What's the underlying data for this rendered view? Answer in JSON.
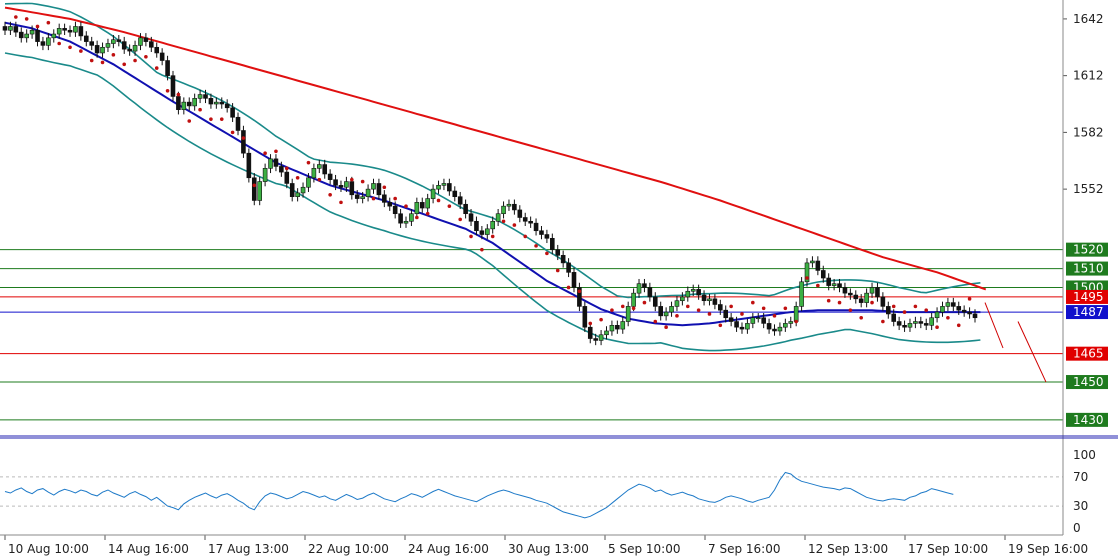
{
  "chart_data": [
    {
      "type": "candlestick",
      "price_axis": {
        "range": [
          1422,
          1652
        ],
        "ticks": [
          1642,
          1612,
          1582,
          1552
        ]
      },
      "time_labels": [
        "10 Aug 10:00",
        "14 Aug 16:00",
        "17 Aug 13:00",
        "22 Aug 10:00",
        "24 Aug 16:00",
        "30 Aug 13:00",
        "5 Sep 10:00",
        "7 Sep 16:00",
        "12 Sep 13:00",
        "17 Sep 10:00",
        "19 Sep 16:00"
      ],
      "levels": [
        {
          "value": 1520,
          "label": "1520",
          "color": "#1e7b1e"
        },
        {
          "value": 1510,
          "label": "1510",
          "color": "#1e7b1e"
        },
        {
          "value": 1500,
          "label": "1500",
          "color": "#1e7b1e"
        },
        {
          "value": 1495,
          "label": "1495",
          "color": "#e00000"
        },
        {
          "value": 1487,
          "label": "1487",
          "color": "#1010cc"
        },
        {
          "value": 1465,
          "label": "1465",
          "color": "#e00000"
        },
        {
          "value": 1450,
          "label": "1450",
          "color": "#1e7b1e"
        },
        {
          "value": 1430,
          "label": "1430",
          "color": "#1e7b1e"
        }
      ],
      "close": [
        1636,
        1638,
        1635,
        1632,
        1634,
        1636,
        1630,
        1628,
        1632,
        1634,
        1637,
        1636,
        1635,
        1638,
        1633,
        1630,
        1628,
        1624,
        1627,
        1629,
        1631,
        1630,
        1626,
        1625,
        1628,
        1632,
        1630,
        1627,
        1624,
        1620,
        1612,
        1601,
        1594,
        1598,
        1596,
        1600,
        1602,
        1600,
        1597,
        1598,
        1597,
        1595,
        1590,
        1583,
        1571,
        1558,
        1546,
        1556,
        1563,
        1568,
        1564,
        1561,
        1555,
        1548,
        1550,
        1553,
        1558,
        1563,
        1565,
        1560,
        1557,
        1554,
        1553,
        1556,
        1549,
        1547,
        1548,
        1552,
        1555,
        1549,
        1545,
        1543,
        1539,
        1534,
        1535,
        1539,
        1545,
        1542,
        1547,
        1552,
        1554,
        1555,
        1551,
        1548,
        1544,
        1539,
        1535,
        1530,
        1528,
        1531,
        1535,
        1539,
        1543,
        1544,
        1541,
        1537,
        1535,
        1534,
        1530,
        1528,
        1526,
        1520,
        1517,
        1513,
        1508,
        1500,
        1490,
        1479,
        1473,
        1472,
        1475,
        1477,
        1480,
        1478,
        1482,
        1490,
        1497,
        1502,
        1500,
        1495,
        1490,
        1485,
        1487,
        1490,
        1493,
        1495,
        1498,
        1499,
        1496,
        1493,
        1494,
        1491,
        1488,
        1484,
        1482,
        1479,
        1478,
        1481,
        1484,
        1484,
        1481,
        1478,
        1477,
        1479,
        1481,
        1482,
        1490,
        1503,
        1513,
        1514,
        1509,
        1505,
        1501,
        1502,
        1500,
        1497,
        1496,
        1494,
        1492,
        1497,
        1500,
        1495,
        1490,
        1486,
        1482,
        1480,
        1479,
        1481,
        1482,
        1481,
        1480,
        1484,
        1487,
        1490,
        1492,
        1490,
        1488,
        1487,
        1486,
        1484
      ],
      "ma_blue": [
        1640,
        1639.4,
        1638.8,
        1638.2,
        1637.6,
        1637,
        1636,
        1635,
        1634,
        1633,
        1632,
        1631,
        1630,
        1628.5,
        1627,
        1625.5,
        1624,
        1622.5,
        1621,
        1619.5,
        1618,
        1616.2,
        1614.4,
        1612.6,
        1610.8,
        1609,
        1607.2,
        1605.4,
        1603.6,
        1601.8,
        1600,
        1598.3,
        1596.6,
        1594.9,
        1593.2,
        1591.5,
        1589.8,
        1588.1,
        1586.4,
        1584.7,
        1583,
        1581.3,
        1579.6,
        1577.9,
        1576.2,
        1574.5,
        1572.8,
        1571.1,
        1569.4,
        1567.7,
        1566,
        1564.8,
        1563.6,
        1562.4,
        1561.2,
        1560,
        1558.8,
        1557.6,
        1556.4,
        1555.2,
        1554,
        1553.2,
        1552.4,
        1551.6,
        1550.8,
        1550,
        1549.2,
        1548.4,
        1547.6,
        1546.8,
        1546,
        1545,
        1544,
        1543,
        1542,
        1541,
        1540,
        1539,
        1538,
        1537,
        1536,
        1535,
        1534,
        1533,
        1532,
        1531,
        1529.5,
        1528,
        1526.5,
        1525,
        1523.5,
        1521.5,
        1519.5,
        1517.5,
        1515.5,
        1513.5,
        1511.5,
        1509.5,
        1507.5,
        1505.5,
        1503.5,
        1502,
        1500.5,
        1499,
        1497.5,
        1496,
        1494.5,
        1493,
        1491.5,
        1490,
        1488.5,
        1487.5,
        1486.5,
        1485.5,
        1484.5,
        1483.5,
        1483,
        1482.5,
        1482,
        1481.5,
        1481,
        1480.8,
        1480.6,
        1480.4,
        1480.2,
        1480,
        1480.2,
        1480.4,
        1480.6,
        1480.8,
        1481,
        1481.4,
        1481.8,
        1482.2,
        1482.6,
        1483,
        1483.4,
        1483.8,
        1484.2,
        1484.6,
        1485,
        1485.4,
        1485.8,
        1486.2,
        1486.6,
        1487,
        1487.2,
        1487.4,
        1487.6,
        1487.8,
        1488,
        1488,
        1488,
        1488,
        1488,
        1488,
        1488,
        1488,
        1488,
        1488,
        1488,
        1487.8,
        1487.6,
        1487.4,
        1487.2,
        1487,
        1487,
        1487,
        1487,
        1487,
        1487,
        1487,
        1487,
        1487,
        1487,
        1487,
        1487,
        1487,
        1487,
        1487,
        1487
      ],
      "ma_red": [
        1648,
        1647.5,
        1647,
        1646.5,
        1646,
        1645.5,
        1645,
        1644.5,
        1644,
        1643.5,
        1643,
        1642.5,
        1642,
        1641.3,
        1640.6,
        1639.9,
        1639.2,
        1638.5,
        1637.8,
        1637.1,
        1636.4,
        1635.7,
        1635,
        1634.2,
        1633.4,
        1632.6,
        1631.8,
        1631,
        1630.2,
        1629.4,
        1628.6,
        1627.8,
        1627,
        1626.2,
        1625.4,
        1624.6,
        1623.8,
        1623,
        1622.2,
        1621.4,
        1620.6,
        1619.8,
        1619,
        1618.2,
        1617.4,
        1616.6,
        1615.8,
        1615,
        1614.2,
        1613.4,
        1612.6,
        1611.8,
        1611,
        1610.2,
        1609.4,
        1608.6,
        1607.8,
        1607,
        1606.2,
        1605.4,
        1604.6,
        1603.8,
        1603,
        1602.2,
        1601.4,
        1600.6,
        1599.8,
        1599,
        1598.2,
        1597.4,
        1596.6,
        1595.8,
        1595,
        1594.2,
        1593.4,
        1592.6,
        1591.8,
        1591,
        1590.2,
        1589.4,
        1588.6,
        1587.8,
        1587,
        1586.2,
        1585.4,
        1584.6,
        1583.8,
        1583,
        1582.2,
        1581.4,
        1580.6,
        1579.8,
        1579,
        1578.2,
        1577.4,
        1576.6,
        1575.8,
        1575,
        1574.2,
        1573.4,
        1572.6,
        1571.8,
        1571,
        1570.2,
        1569.4,
        1568.6,
        1567.8,
        1567,
        1566.2,
        1565.4,
        1564.6,
        1563.8,
        1563,
        1562.2,
        1561.4,
        1560.6,
        1559.8,
        1559,
        1558.2,
        1557.4,
        1556.6,
        1555.8,
        1555,
        1554.1,
        1553.2,
        1552.3,
        1551.4,
        1550.5,
        1549.6,
        1548.7,
        1547.8,
        1546.9,
        1546,
        1545,
        1544,
        1543,
        1542,
        1541,
        1540,
        1539,
        1538,
        1537,
        1536,
        1535,
        1534,
        1533,
        1532,
        1531,
        1530,
        1529,
        1528,
        1527,
        1526,
        1525,
        1524,
        1523,
        1522,
        1521,
        1520,
        1519,
        1518,
        1517,
        1516,
        1515.2,
        1514.4,
        1513.6,
        1512.8,
        1512,
        1511.2,
        1510.4,
        1509.6,
        1508.8,
        1508,
        1507,
        1506,
        1505,
        1504,
        1503,
        1502,
        1501,
        1500,
        1499
      ],
      "rsi": {
        "range": [
          0,
          100
        ],
        "ticks": [
          100,
          70,
          30,
          0
        ],
        "values": [
          50,
          48,
          52,
          55,
          50,
          47,
          52,
          54,
          49,
          45,
          50,
          53,
          51,
          48,
          52,
          50,
          46,
          44,
          49,
          52,
          48,
          45,
          42,
          47,
          50,
          46,
          43,
          38,
          42,
          36,
          30,
          28,
          25,
          33,
          38,
          42,
          45,
          48,
          44,
          41,
          45,
          47,
          43,
          38,
          34,
          28,
          25,
          36,
          44,
          48,
          46,
          43,
          40,
          42,
          46,
          50,
          48,
          45,
          42,
          44,
          40,
          38,
          42,
          46,
          43,
          39,
          41,
          45,
          48,
          44,
          40,
          38,
          36,
          40,
          43,
          47,
          45,
          42,
          46,
          50,
          53,
          50,
          47,
          44,
          42,
          40,
          38,
          36,
          40,
          44,
          47,
          50,
          52,
          50,
          47,
          45,
          43,
          41,
          38,
          36,
          34,
          30,
          26,
          22,
          20,
          18,
          16,
          14,
          16,
          20,
          24,
          28,
          34,
          40,
          46,
          52,
          56,
          60,
          58,
          55,
          50,
          52,
          48,
          45,
          47,
          49,
          46,
          44,
          40,
          38,
          36,
          35,
          38,
          42,
          44,
          42,
          40,
          37,
          35,
          38,
          40,
          42,
          52,
          66,
          76,
          74,
          68,
          64,
          62,
          60,
          58,
          56,
          55,
          54,
          52,
          55,
          54,
          50,
          46,
          42,
          40,
          38,
          37,
          39,
          40,
          39,
          38,
          42,
          44,
          48,
          50,
          54,
          52,
          50,
          48,
          46
        ]
      }
    }
  ]
}
